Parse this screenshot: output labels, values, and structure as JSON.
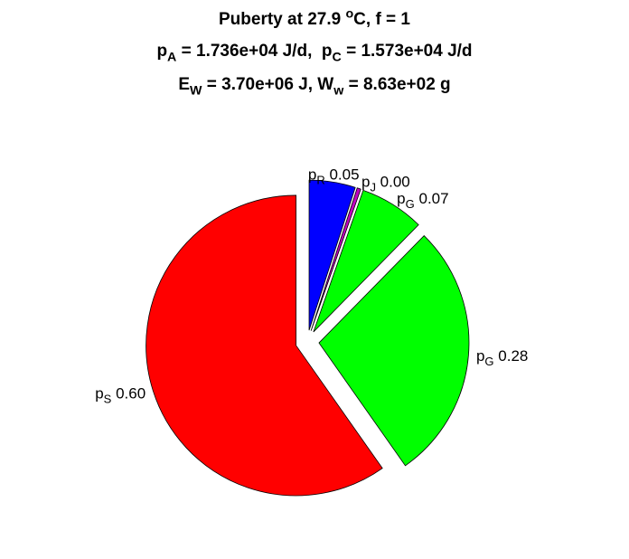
{
  "chart_data": {
    "type": "pie",
    "title_lines": [
      [
        {
          "text": "Puberty at 27.9 ",
          "style": "normal"
        },
        {
          "text": "o",
          "style": "sup"
        },
        {
          "text": "C, f = 1",
          "style": "normal"
        }
      ],
      [
        {
          "text": "p",
          "style": "normal"
        },
        {
          "text": "A",
          "style": "sub"
        },
        {
          "text": " = 1.736e+04 J/d,  p",
          "style": "normal"
        },
        {
          "text": "C",
          "style": "sub"
        },
        {
          "text": " = 1.573e+04 J/d",
          "style": "normal"
        }
      ],
      [
        {
          "text": "E",
          "style": "normal"
        },
        {
          "text": "W",
          "style": "sub"
        },
        {
          "text": " = 3.70e+06 J, W",
          "style": "normal"
        },
        {
          "text": "w",
          "style": "sub"
        },
        {
          "text": " = 8.63e+02 g",
          "style": "normal"
        }
      ]
    ],
    "label_prefix": "p",
    "names": [
      "R",
      "J",
      "G",
      "G",
      "S"
    ],
    "values": [
      0.05,
      0.004,
      0.07,
      0.28,
      0.6
    ],
    "value_labels": [
      "0.05",
      "0.00",
      "0.07",
      "0.28",
      "0.60"
    ],
    "colors": [
      "#0000ff",
      "#c000c0",
      "#00ff00",
      "#00ff00",
      "#ff0000"
    ],
    "explode": true
  }
}
